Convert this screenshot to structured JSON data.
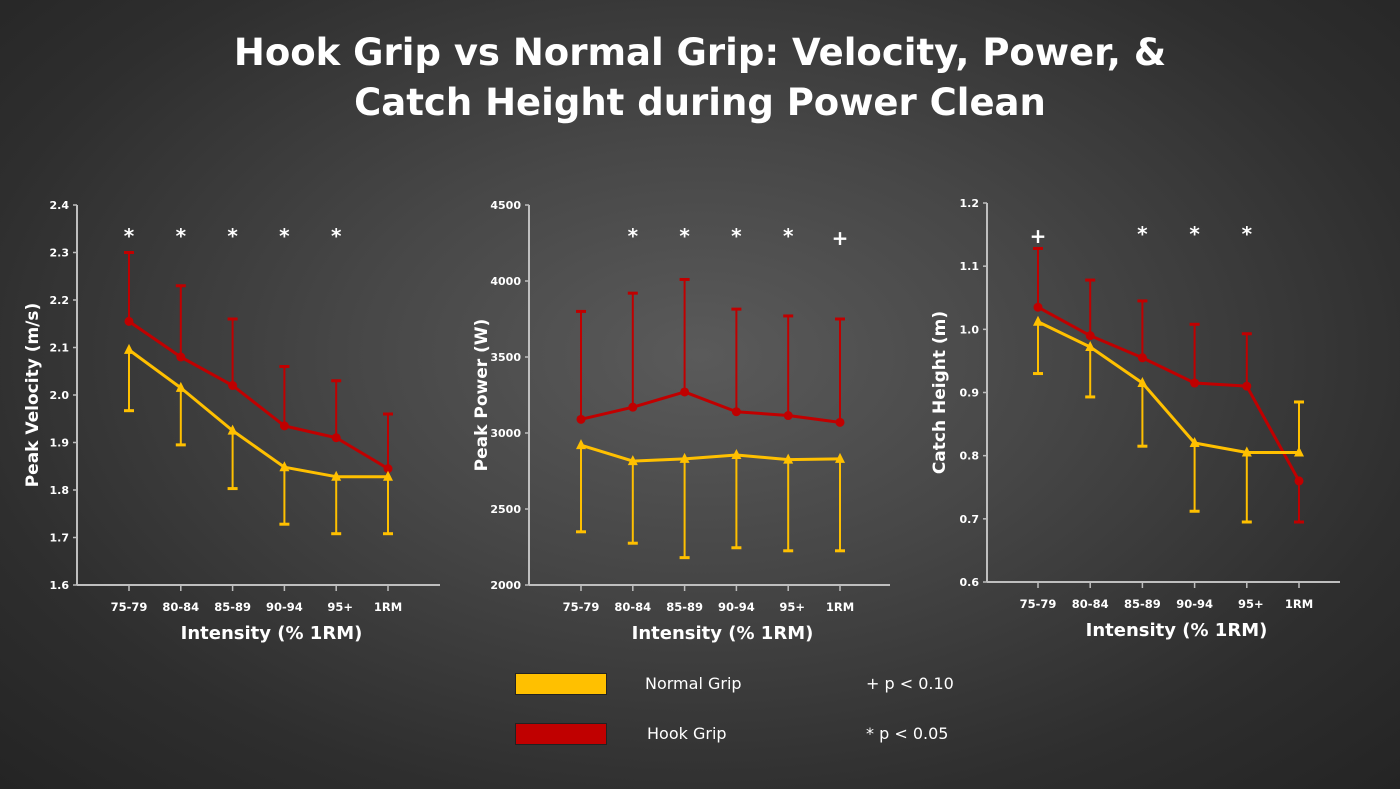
{
  "title_lines": [
    "Hook Grip vs Normal Grip: Velocity, Power, &",
    "Catch Height during Power Clean"
  ],
  "colors": {
    "normal": "#FFC000",
    "hook": "#C00000",
    "text": "#FFFFFF",
    "axis": "#BFBFBF"
  },
  "legend": {
    "normal": "Normal Grip",
    "hook": "Hook Grip",
    "plus_note": "+ p < 0.10",
    "star_note": "* p < 0.05"
  },
  "chart_data": [
    {
      "type": "line",
      "xlabel": "Intensity (% 1RM)",
      "ylabel": "Peak Velocity (m/s)",
      "ylim": [
        1.6,
        2.4
      ],
      "yticks": [
        "1.6",
        "1.7",
        "1.8",
        "1.9",
        "2.0",
        "2.1",
        "2.2",
        "2.3",
        "2.4"
      ],
      "categories": [
        "75-79",
        "80-84",
        "85-89",
        "90-94",
        "95+",
        "1RM"
      ],
      "significance": [
        "*",
        "*",
        "*",
        "*",
        "*",
        ""
      ],
      "series": [
        {
          "key": "hook",
          "name": "Hook Grip",
          "marker": "circle",
          "values": [
            2.155,
            2.08,
            2.02,
            1.935,
            1.91,
            1.845
          ],
          "error_end": [
            2.3,
            2.23,
            2.16,
            2.06,
            2.03,
            1.96
          ]
        },
        {
          "key": "normal",
          "name": "Normal Grip",
          "marker": "triangle",
          "values": [
            2.095,
            2.015,
            1.925,
            1.848,
            1.828,
            1.828
          ],
          "error_end": [
            1.967,
            1.895,
            1.803,
            1.728,
            1.708,
            1.708
          ]
        }
      ]
    },
    {
      "type": "line",
      "xlabel": "Intensity (% 1RM)",
      "ylabel": "Peak Power (W)",
      "ylim": [
        2000,
        4500
      ],
      "yticks": [
        "2000",
        "2500",
        "3000",
        "3500",
        "4000",
        "4500"
      ],
      "categories": [
        "75-79",
        "80-84",
        "85-89",
        "90-94",
        "95+",
        "1RM"
      ],
      "significance": [
        "",
        "*",
        "*",
        "*",
        "*",
        "+"
      ],
      "series": [
        {
          "key": "hook",
          "name": "Hook Grip",
          "marker": "circle",
          "values": [
            3090,
            3170,
            3270,
            3140,
            3115,
            3070
          ],
          "error_end": [
            3800,
            3920,
            4010,
            3815,
            3770,
            3750
          ]
        },
        {
          "key": "normal",
          "name": "Normal Grip",
          "marker": "triangle",
          "values": [
            2920,
            2815,
            2830,
            2855,
            2825,
            2830
          ],
          "error_end": [
            2350,
            2275,
            2180,
            2245,
            2225,
            2225
          ]
        }
      ]
    },
    {
      "type": "line",
      "xlabel": "Intensity (% 1RM)",
      "ylabel": "Catch Height (m)",
      "ylim": [
        0.6,
        1.2
      ],
      "yticks": [
        "0.6",
        "0.7",
        "0.8",
        "0.9",
        "1.0",
        "1.1",
        "1.2"
      ],
      "categories": [
        "75-79",
        "80-84",
        "85-89",
        "90-94",
        "95+",
        "1RM"
      ],
      "significance": [
        "+",
        "",
        "*",
        "*",
        "*",
        ""
      ],
      "series": [
        {
          "key": "hook",
          "name": "Hook Grip",
          "marker": "circle",
          "values": [
            1.035,
            0.99,
            0.955,
            0.915,
            0.91,
            0.76
          ],
          "error_end": [
            1.128,
            1.078,
            1.045,
            1.008,
            0.993,
            0.695
          ]
        },
        {
          "key": "normal",
          "name": "Normal Grip",
          "marker": "triangle",
          "values": [
            1.012,
            0.972,
            0.915,
            0.82,
            0.805,
            0.805
          ],
          "error_end": [
            0.93,
            0.893,
            0.815,
            0.712,
            0.695,
            0.885
          ]
        }
      ]
    }
  ]
}
